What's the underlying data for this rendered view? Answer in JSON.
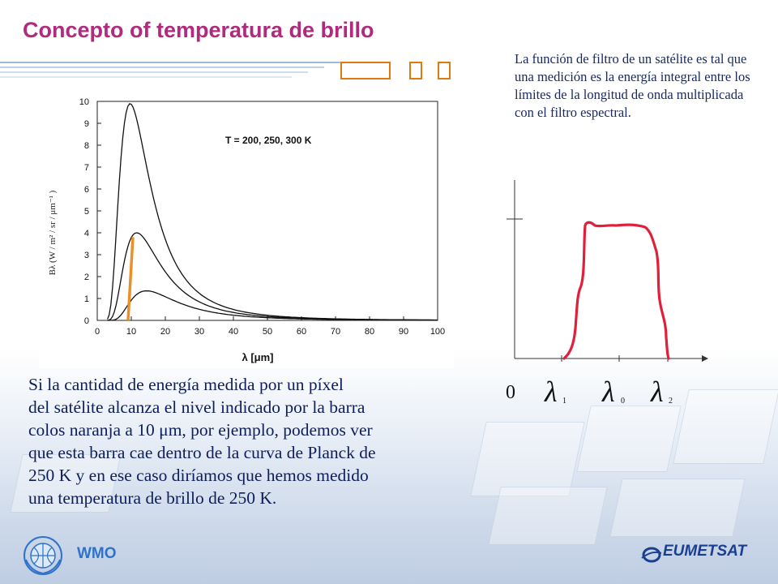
{
  "slide": {
    "title": "Concepto of temperatura de brillo",
    "note": "La función de filtro de un satélite es tal que una medición es la energía integral entre los límites de la longitud de onda multiplicada con el filtro espectral.",
    "body_lines": [
      "Si la cantidad de energía medida por un píxel",
      "del satélite alcanza el nivel indicado por la barra",
      "colos naranja a 10 μm, por ejemplo, podemos ver",
      "que esta barra cae dentro de la curva de Planck de",
      "250 K y en ese caso diríamos que hemos medido",
      "una temperatura de brillo de 250 K."
    ],
    "footer_left": "WMO",
    "footer_right": "EUMETSAT"
  },
  "chart_data": [
    {
      "type": "line",
      "title": "T = 200, 250, 300 K",
      "xlabel": "λ [μm]",
      "ylabel": "Bλ (W / m² / sr / μm⁻¹ )",
      "xlim": [
        0,
        100
      ],
      "ylim": [
        0,
        10
      ],
      "xticks": [
        "0",
        "10",
        "20",
        "30",
        "40",
        "50",
        "60",
        "70",
        "80",
        "90",
        "100"
      ],
      "yticks": [
        "0",
        "1",
        "2",
        "3",
        "4",
        "5",
        "6",
        "7",
        "8",
        "9",
        "10"
      ],
      "series": [
        {
          "name": "300 K",
          "peak_x": 9.7,
          "peak_y": 9.9
        },
        {
          "name": "250 K",
          "peak_x": 11.6,
          "peak_y": 4.0
        },
        {
          "name": "200 K",
          "peak_x": 14.5,
          "peak_y": 1.35
        }
      ],
      "marker": {
        "x": 10,
        "y_from": 0,
        "y_to": 3.8,
        "color": "#e8902a"
      }
    },
    {
      "type": "line",
      "title": "",
      "xlabels": [
        "0",
        "λ",
        "λ",
        "λ"
      ],
      "xlabel_subscripts": [
        "",
        "1",
        "0",
        "2"
      ],
      "curve_color": "#e0203a"
    }
  ]
}
